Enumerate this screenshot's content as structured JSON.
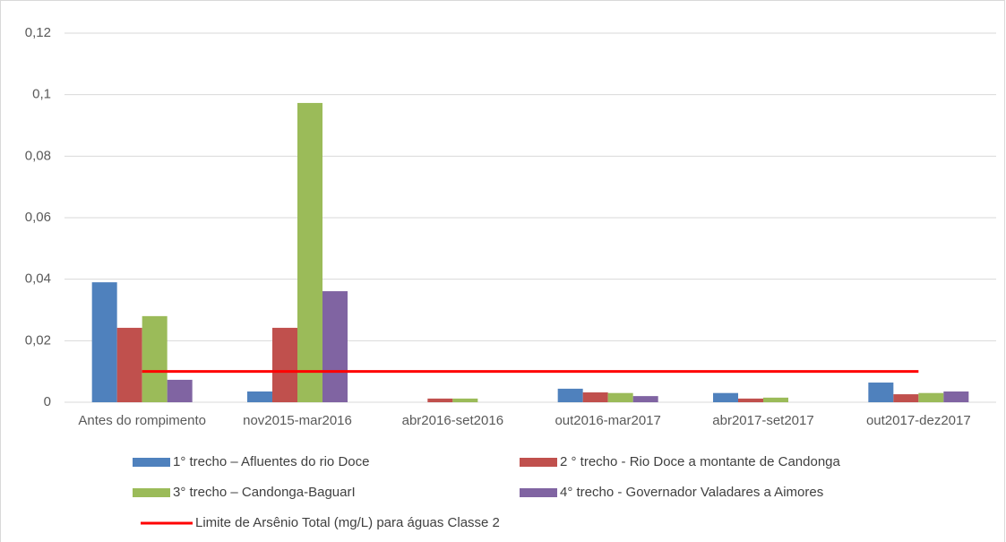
{
  "chart_data": {
    "type": "bar",
    "categories": [
      "Antes do rompimento",
      "nov2015-mar2016",
      "abr2016-set2016",
      "out2016-mar2017",
      "abr2017-set2017",
      "out2017-dez2017"
    ],
    "series": [
      {
        "name": "1° trecho – Afluentes do rio Doce",
        "color": "#4f81bd",
        "values": [
          0.039,
          0.0035,
          0,
          0.0044,
          0.003,
          0.0064
        ]
      },
      {
        "name": "2 ° trecho - Rio Doce a montante de Candonga",
        "color": "#c0504d",
        "values": [
          0.0242,
          0.0242,
          0.0012,
          0.0032,
          0.0012,
          0.0026
        ]
      },
      {
        "name": "3° trecho – Candonga-BaguarI",
        "color": "#9bbb59",
        "values": [
          0.028,
          0.0973,
          0.0012,
          0.003,
          0.0015,
          0.003
        ]
      },
      {
        "name": "4° trecho - Governador Valadares a Aimores",
        "color": "#8064a2",
        "values": [
          0.0073,
          0.0361,
          0,
          0.002,
          0,
          0.0035
        ]
      }
    ],
    "line_series": {
      "name": "Limite de Arsênio Total (mg/L) para águas Classe 2",
      "color": "#ff0000",
      "values": [
        0.01,
        0.01,
        0.01,
        0.01,
        0.01,
        0.01
      ]
    },
    "ylim": [
      0,
      0.12
    ],
    "yticks": [
      0,
      {
        "value": 0.02,
        "label": "0,02"
      },
      {
        "value": 0.04,
        "label": "0,04"
      },
      {
        "value": 0.06,
        "label": "0,06"
      },
      {
        "value": 0.08,
        "label": "0,08"
      },
      {
        "value": 0.1,
        "label": "0,1"
      },
      {
        "value": 0.12,
        "label": "0,12"
      }
    ],
    "grid": true
  }
}
